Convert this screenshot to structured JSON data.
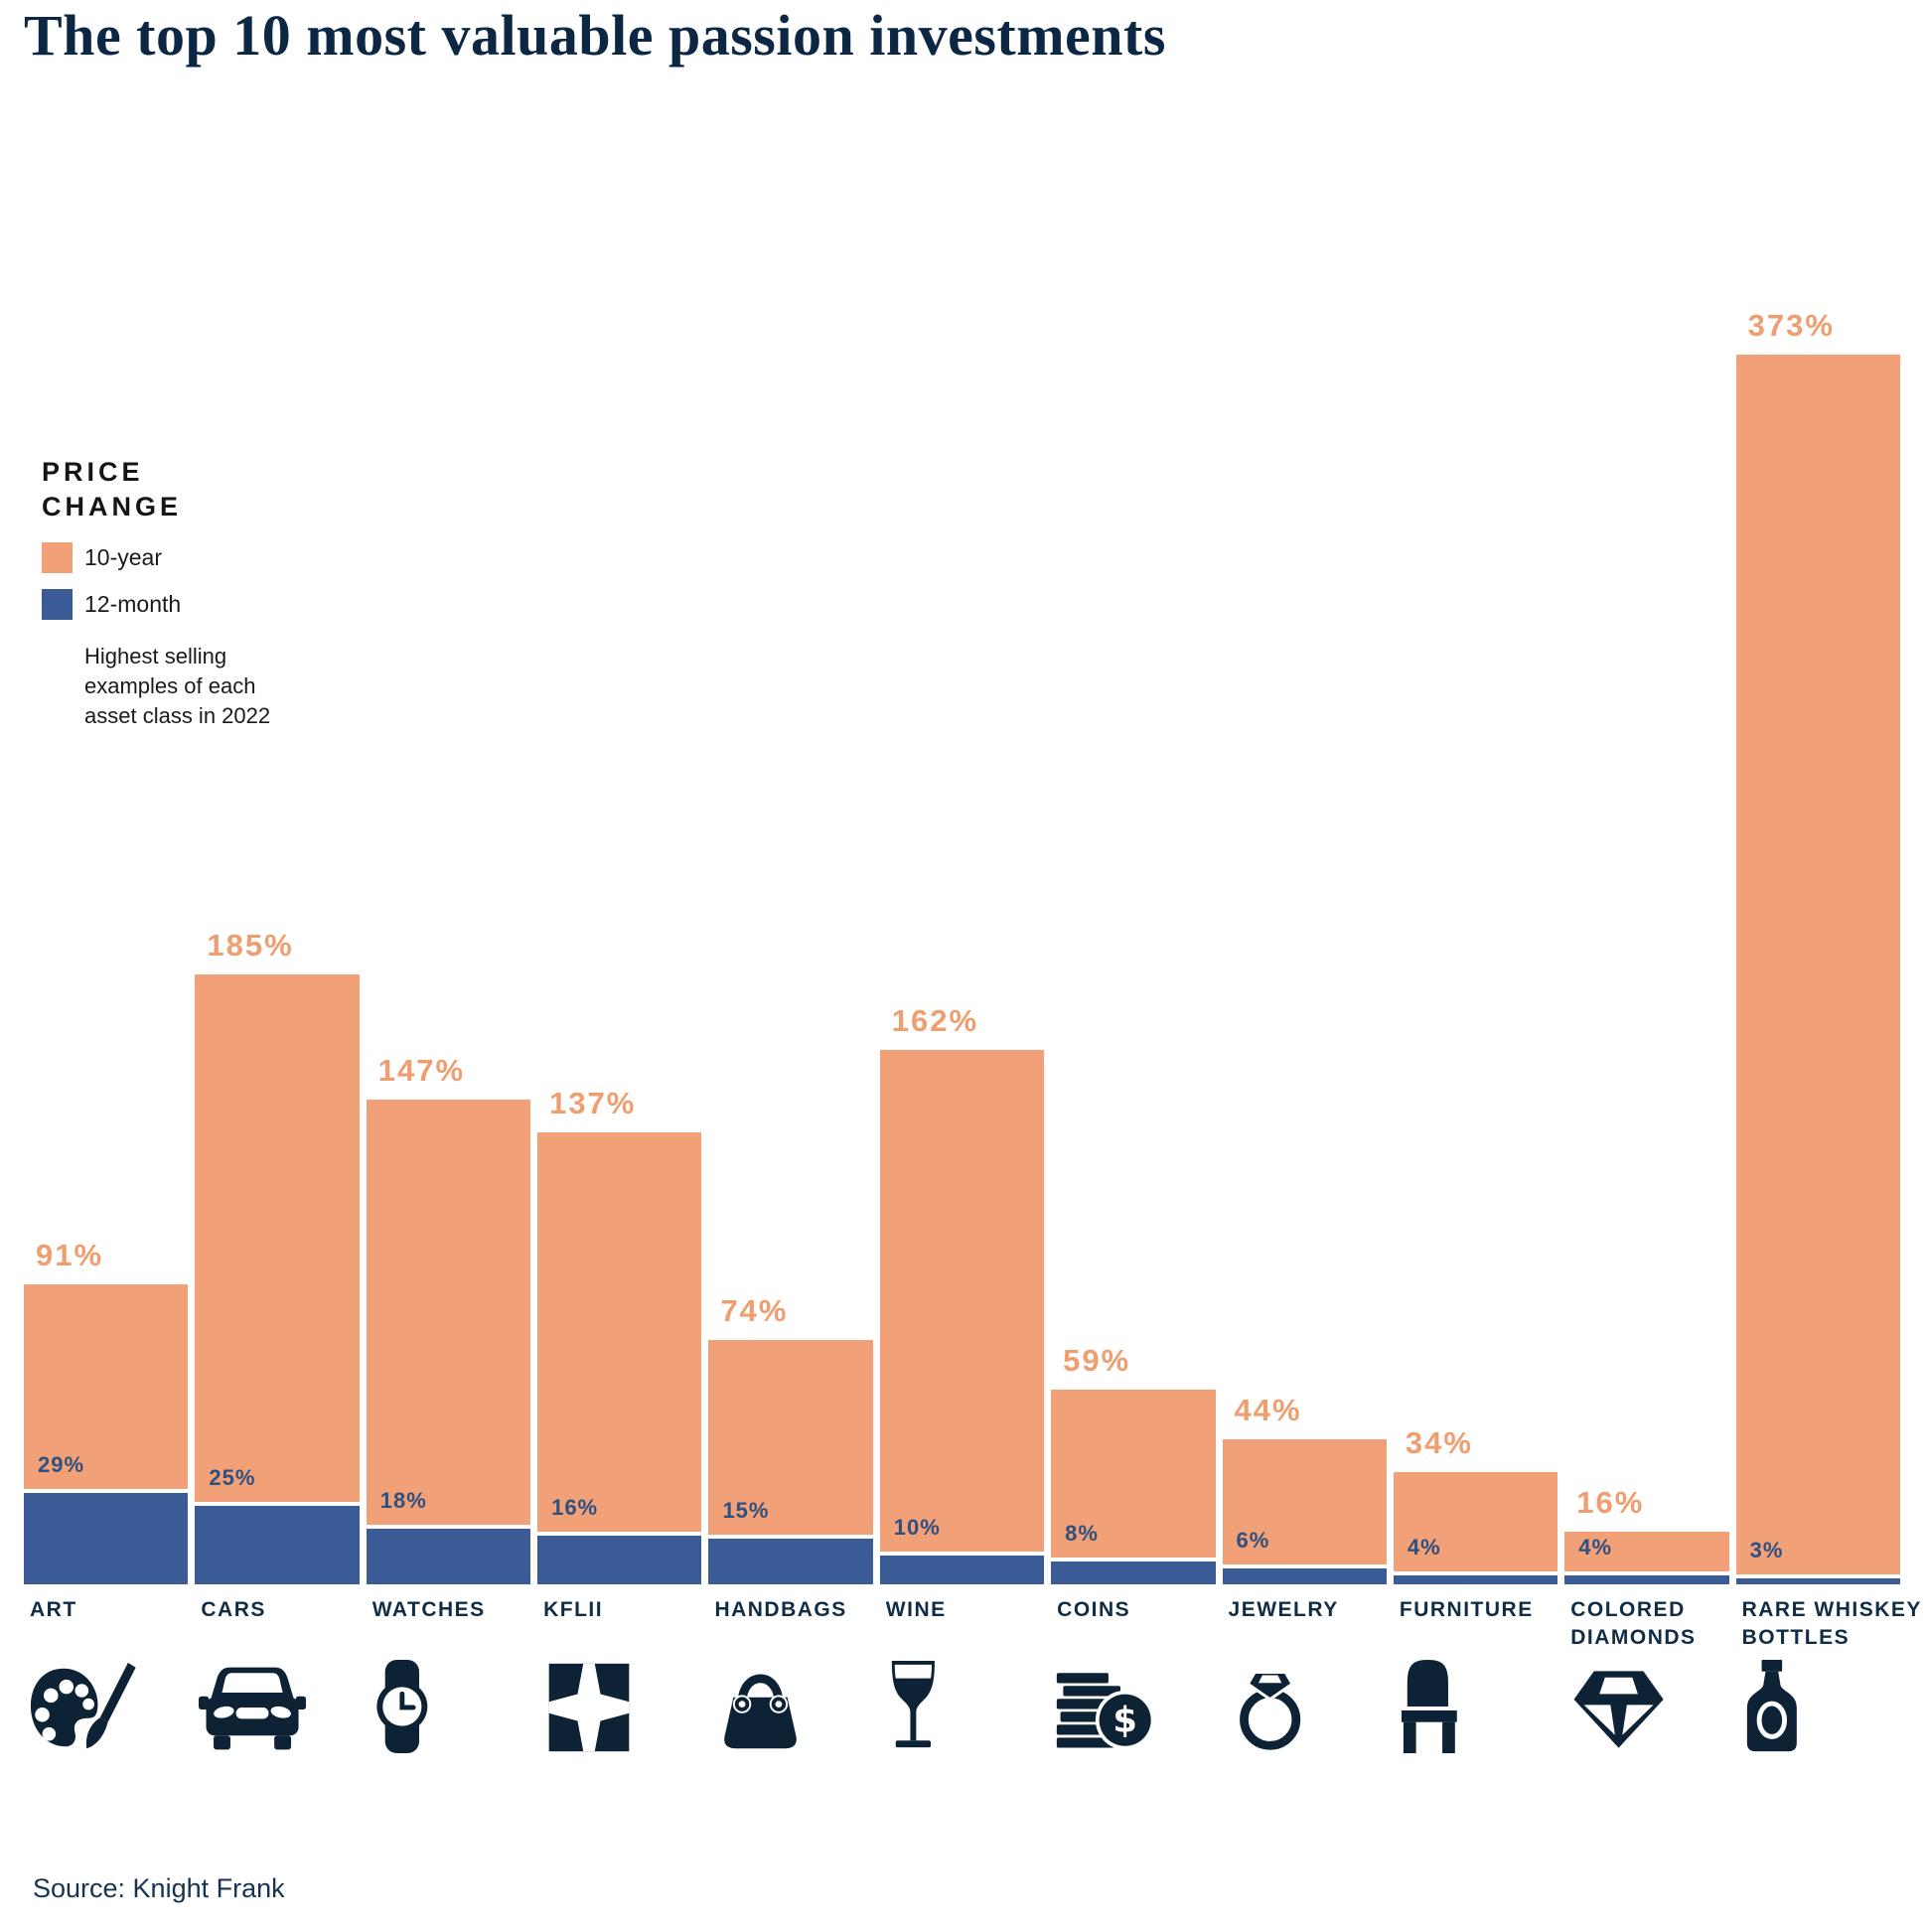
{
  "title": "The top 10 most valuable passion investments",
  "legend": {
    "title": "PRICE\nCHANGE",
    "items": [
      {
        "label": "10-year",
        "color": "#F1A077"
      },
      {
        "label": "12-month",
        "color": "#3A5B95"
      }
    ],
    "note": "Highest selling\nexamples of each\nasset class in 2022"
  },
  "source": "Source: Knight Frank",
  "colors": {
    "orange_bar": "#F1A077",
    "orange_label": "#EF9E70",
    "blue_bar": "#3A5B95",
    "blue_label": "#2E5080",
    "navy_text": "#102C46",
    "icon_navy": "#0D2335"
  },
  "chart_data": {
    "type": "bar",
    "title": "The top 10 most valuable passion investments",
    "xlabel": "",
    "ylabel": "Price change (%)",
    "ylim": [
      0,
      373
    ],
    "grid": false,
    "legend_position": "upper-left",
    "value_suffix": "%",
    "categories": [
      "ART",
      "CARS",
      "WATCHES",
      "KFLII",
      "HANDBAGS",
      "WINE",
      "COINS",
      "JEWELRY",
      "FURNITURE",
      "COLORED\nDIAMONDS",
      "RARE WHISKEY\nBOTTLES"
    ],
    "icons": [
      "palette-icon",
      "car-icon",
      "watch-icon",
      "kflii-logo-icon",
      "handbag-icon",
      "wine-glass-icon",
      "coins-icon",
      "ring-icon",
      "chair-icon",
      "diamond-icon",
      "whiskey-bottle-icon"
    ],
    "series": [
      {
        "name": "10-year",
        "values": [
          91,
          185,
          147,
          137,
          74,
          162,
          59,
          44,
          34,
          16,
          373
        ]
      },
      {
        "name": "12-month",
        "values": [
          29,
          25,
          18,
          16,
          15,
          10,
          8,
          6,
          4,
          4,
          3
        ]
      }
    ]
  }
}
